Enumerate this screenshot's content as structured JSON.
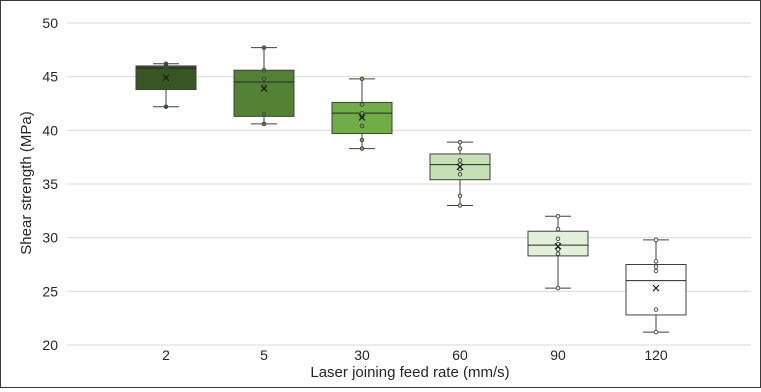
{
  "chart_data": {
    "type": "box",
    "xlabel": "Laser joining feed rate (mm/s)",
    "ylabel": "Shear strength (MPa)",
    "ylim": [
      20,
      50
    ],
    "yticks": [
      20,
      25,
      30,
      35,
      40,
      45,
      50
    ],
    "grid": "horizontal",
    "categories": [
      "2",
      "5",
      "30",
      "60",
      "90",
      "120"
    ],
    "boxes": [
      {
        "category": "2",
        "color": "#375623",
        "whisker_low": 42.2,
        "q1": 43.8,
        "median": 45.8,
        "q3": 46.0,
        "whisker_high": 46.2,
        "mean": 44.9,
        "points": [
          42.2,
          45.8,
          46.0,
          46.2
        ]
      },
      {
        "category": "5",
        "color": "#548235",
        "whisker_low": 40.6,
        "q1": 41.3,
        "median": 44.5,
        "q3": 45.6,
        "whisker_high": 47.7,
        "mean": 43.9,
        "points": [
          40.6,
          41.5,
          44.1,
          44.8,
          45.6,
          47.7
        ]
      },
      {
        "category": "30",
        "color": "#70AD47",
        "whisker_low": 38.3,
        "q1": 39.7,
        "median": 41.6,
        "q3": 42.6,
        "whisker_high": 44.8,
        "mean": 41.2,
        "points": [
          38.3,
          39.1,
          40.4,
          41.3,
          41.6,
          42.4,
          44.8
        ]
      },
      {
        "category": "60",
        "color": "#C5E0B4",
        "whisker_low": 33.0,
        "q1": 35.4,
        "median": 36.8,
        "q3": 37.8,
        "whisker_high": 38.9,
        "mean": 36.6,
        "points": [
          33.0,
          33.9,
          35.9,
          36.4,
          36.8,
          37.2,
          38.3,
          38.9
        ]
      },
      {
        "category": "90",
        "color": "#E2F0D9",
        "whisker_low": 25.3,
        "q1": 28.3,
        "median": 29.3,
        "q3": 30.6,
        "whisker_high": 32.0,
        "mean": 29.2,
        "points": [
          25.3,
          28.5,
          28.9,
          29.4,
          29.9,
          30.8,
          32.0
        ]
      },
      {
        "category": "120",
        "color": "#FFFFFF",
        "whisker_low": 21.2,
        "q1": 22.8,
        "median": 26.0,
        "q3": 27.5,
        "whisker_high": 29.8,
        "mean": 25.3,
        "points": [
          21.2,
          23.3,
          26.9,
          27.3,
          27.8,
          29.8
        ]
      }
    ]
  }
}
